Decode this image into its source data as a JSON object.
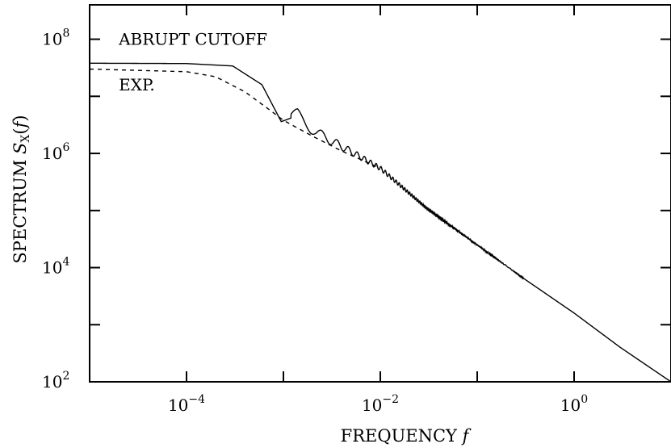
{
  "chart_data": {
    "type": "line",
    "xlabel": "FREQUENCY f",
    "ylabel": "SPECTRUM S_X(f)",
    "x_scale": "log",
    "y_scale": "log",
    "xlim": [
      1e-05,
      10
    ],
    "ylim": [
      100,
      400000000
    ],
    "x_ticks": [
      {
        "value": 0.0001,
        "mantissa": "10",
        "exp": "−4"
      },
      {
        "value": 0.01,
        "mantissa": "10",
        "exp": "−2"
      },
      {
        "value": 1,
        "mantissa": "10",
        "exp": "0"
      }
    ],
    "y_ticks": [
      {
        "value": 100,
        "mantissa": "10",
        "exp": "2"
      },
      {
        "value": 10000,
        "mantissa": "10",
        "exp": "4"
      },
      {
        "value": 1000000,
        "mantissa": "10",
        "exp": "6"
      },
      {
        "value": 100000000,
        "mantissa": "10",
        "exp": "8"
      }
    ],
    "grid": false,
    "series": [
      {
        "name": "ABRUPT CUTOFF",
        "line_style": "solid",
        "x": [
          1e-05,
          0.0001,
          0.0003,
          0.0006,
          0.00095,
          0.0014,
          0.0022,
          0.0035,
          0.006,
          0.01,
          0.03,
          0.1,
          0.3,
          1,
          3,
          10
        ],
        "y": [
          38000000,
          37500000,
          34000000,
          16000000,
          3600000,
          4600000,
          2300000,
          1500000,
          900000,
          550000,
          110000,
          25000,
          6500,
          1600,
          400,
          100
        ]
      },
      {
        "name": "EXP.",
        "line_style": "dashed",
        "x": [
          1e-05,
          0.0001,
          0.0002,
          0.0004,
          0.0007,
          0.001,
          0.002,
          0.004,
          0.01
        ],
        "y": [
          30000000,
          27000000,
          22000000,
          12000000,
          6000000,
          3800000,
          2000000,
          1100000,
          550000
        ]
      }
    ],
    "annotations": [
      {
        "text": "ABRUPT CUTOFF",
        "x": 2e-05,
        "y": 100000000
      },
      {
        "text": "EXP.",
        "x": 2e-05,
        "y": 16000000
      }
    ]
  }
}
